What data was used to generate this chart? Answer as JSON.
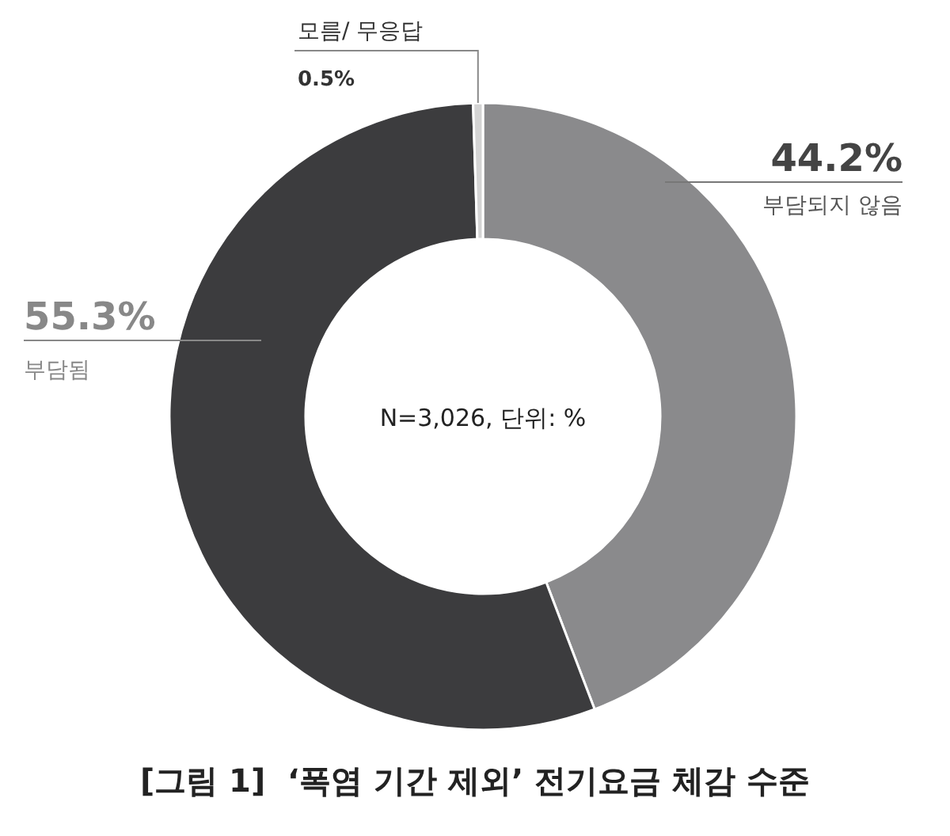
{
  "chart_data": {
    "type": "donut",
    "categories": [
      "부담되지 않음",
      "부담됨",
      "모름/ 무응답"
    ],
    "values": [
      44.2,
      55.3,
      0.5
    ],
    "colors": [
      "#8a8a8c",
      "#3c3c3e",
      "#d4d4d4"
    ],
    "value_labels": [
      "44.2%",
      "55.3%",
      "0.5%"
    ],
    "title": "[그림 1]  ‘폭염 기간 제외’ 전기요금 체감 수준",
    "annotations": [
      "N=3,026, 단위: %"
    ]
  }
}
